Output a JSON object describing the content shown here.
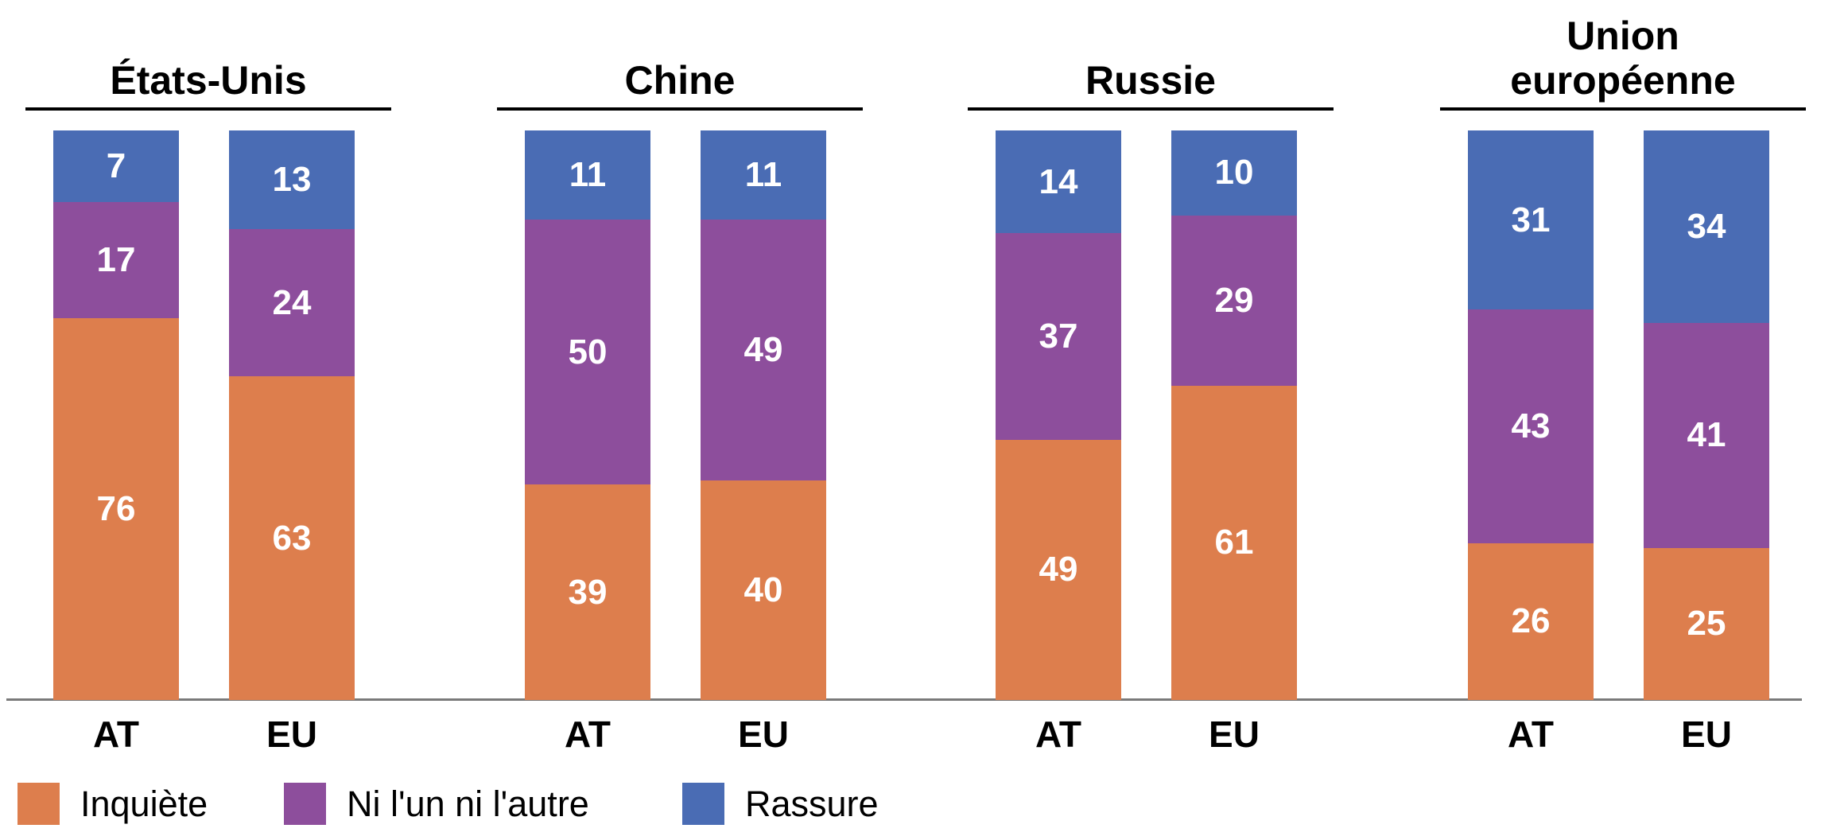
{
  "chart_data": {
    "type": "bar",
    "stacked": true,
    "orientation": "vertical",
    "value_unit": "percent",
    "value_range": [
      0,
      100
    ],
    "grid": false,
    "series_order": "bottom-to-top",
    "series": [
      {
        "name": "Inquiète",
        "color": "#DD7E4D"
      },
      {
        "name": "Ni l'un ni l'autre",
        "color": "#8D4E9C"
      },
      {
        "name": "Rassure",
        "color": "#4A6CB4"
      }
    ],
    "groups": [
      {
        "title": "États-Unis",
        "bars": [
          {
            "label": "AT",
            "values": [
              76,
              17,
              7
            ]
          },
          {
            "label": "EU",
            "values": [
              63,
              24,
              13
            ]
          }
        ]
      },
      {
        "title": "Chine",
        "bars": [
          {
            "label": "AT",
            "values": [
              39,
              50,
              11
            ]
          },
          {
            "label": "EU",
            "values": [
              40,
              49,
              11
            ]
          }
        ]
      },
      {
        "title": "Russie",
        "bars": [
          {
            "label": "AT",
            "values": [
              49,
              37,
              14
            ]
          },
          {
            "label": "EU",
            "values": [
              61,
              29,
              10
            ]
          }
        ]
      },
      {
        "title": "Union\neuropéenne",
        "bars": [
          {
            "label": "AT",
            "values": [
              26,
              43,
              31
            ]
          },
          {
            "label": "EU",
            "values": [
              25,
              41,
              34
            ]
          }
        ]
      }
    ],
    "legend": {
      "position": "bottom-left",
      "items": [
        {
          "label": "Inquiète",
          "color": "#DD7E4D"
        },
        {
          "label": "Ni l'un ni l'autre",
          "color": "#8D4E9C"
        },
        {
          "label": "Rassure",
          "color": "#4A6CB4"
        }
      ]
    }
  },
  "colors": {
    "background": "#ffffff",
    "axis_line": "#7A7A7A",
    "title_underline": "#000000",
    "bar_label_text": "#ffffff",
    "axis_label_text": "#000000"
  }
}
